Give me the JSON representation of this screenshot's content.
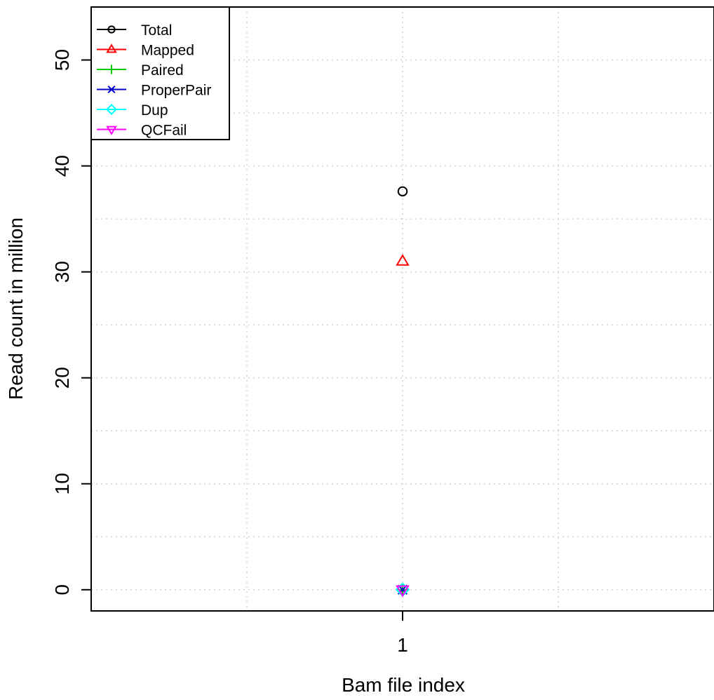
{
  "chart_data": {
    "type": "scatter",
    "xlabel": "Bam file index",
    "ylabel": "Read count in million",
    "xlim": [
      0.5,
      1.5
    ],
    "ylim": [
      -2,
      55
    ],
    "x_ticks": [
      1
    ],
    "y_ticks": [
      0,
      10,
      20,
      30,
      40,
      50
    ],
    "grid": true,
    "legend_position": "top-left",
    "series": [
      {
        "name": "Total",
        "color": "#000000",
        "marker": "circle",
        "x": [
          1
        ],
        "values": [
          37.6
        ]
      },
      {
        "name": "Mapped",
        "color": "#ff0000",
        "marker": "triangle-up",
        "x": [
          1
        ],
        "values": [
          31.0
        ]
      },
      {
        "name": "Paired",
        "color": "#00cd00",
        "marker": "plus",
        "x": [
          1
        ],
        "values": [
          0
        ]
      },
      {
        "name": "ProperPair",
        "color": "#0000cd",
        "marker": "cross",
        "x": [
          1
        ],
        "values": [
          0
        ]
      },
      {
        "name": "Dup",
        "color": "#00ffff",
        "marker": "diamond",
        "x": [
          1
        ],
        "values": [
          0
        ]
      },
      {
        "name": "QCFail",
        "color": "#ff00ff",
        "marker": "triangle-down",
        "x": [
          1
        ],
        "values": [
          0
        ]
      }
    ]
  }
}
